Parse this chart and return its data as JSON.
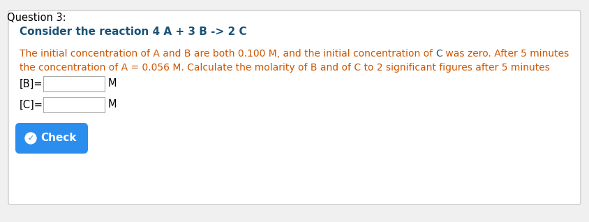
{
  "title": "Question 3:",
  "title_color": "#000000",
  "title_fontsize": 10.5,
  "box_line_color": "#cccccc",
  "reaction_text": "Consider the reaction 4 A + 3 B -> 2 C",
  "reaction_color": "#1a5276",
  "reaction_fontsize": 11,
  "body_line1_seg1": "The initial concentration of A and B are both 0.100 M, and the initial concentration of ",
  "body_line1_seg2": "C",
  "body_line1_seg3": " was zero. After 5 minutes",
  "body_line2": "the concentration of A = 0.056 M. Calculate the molarity of B and of C to 2 significant figures after 5 minutes",
  "orange_color": "#cc5500",
  "blue_color": "#1a5276",
  "body_fontsize": 10.0,
  "label_B": "[B]=",
  "label_C": "[C]=",
  "unit_M": "M",
  "label_color": "#000000",
  "label_fontsize": 10.5,
  "input_box_color": "#ffffff",
  "input_box_border": "#aaaaaa",
  "check_button_color": "#2b8eef",
  "check_text_color": "#ffffff",
  "check_fontsize": 11,
  "background_color": "#ffffff",
  "outer_bg": "#f0f0f0"
}
